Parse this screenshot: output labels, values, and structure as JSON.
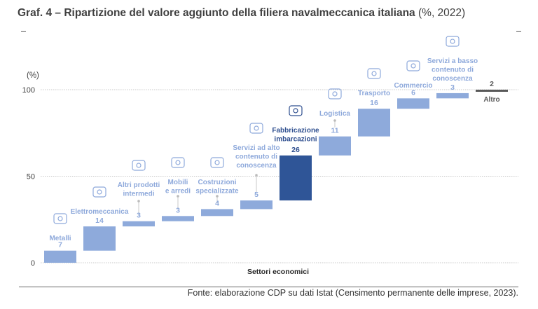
{
  "title": {
    "main": "Graf. 4 – Ripartizione del valore aggiunto della filiera navalmeccanica italiana",
    "sub": " (%, 2022)"
  },
  "source": "Fonte: elaborazione CDP su dati Istat (Censimento permanente delle imprese, 2023).",
  "chart_data": {
    "type": "waterfall",
    "title": "Graf. 4 – Ripartizione del valore aggiunto della filiera navalmeccanica italiana (%, 2022)",
    "ylabel": "(%)",
    "xlabel": "Settori economici",
    "ylim": [
      0,
      100
    ],
    "yticks": [
      "0",
      "50",
      "100"
    ],
    "grid": true,
    "categories": [
      {
        "label": [
          "Metalli"
        ],
        "value": 7,
        "icon": "worker-icon"
      },
      {
        "label": [
          "Elettromeccanica"
        ],
        "value": 14,
        "icon": "robot-arm-antenna-icon"
      },
      {
        "label": [
          "Altri prodotti",
          "intermedi"
        ],
        "value": 3,
        "icon": "gears-icon"
      },
      {
        "label": [
          "Mobili",
          "e arredi"
        ],
        "value": 3,
        "icon": "furniture-icon"
      },
      {
        "label": [
          "Costruzioni",
          "specializzate"
        ],
        "value": 4,
        "icon": "crane-icon"
      },
      {
        "label": [
          "Servizi ad alto",
          "contenuto di",
          "conoscenza"
        ],
        "value": 5,
        "icon": "lightbulb-gear-icon"
      },
      {
        "label": [
          "Fabbricazione",
          "imbarcazioni"
        ],
        "value": 26,
        "icon": "ship-sailboat-icon",
        "highlight": true
      },
      {
        "label": [
          "Logistica"
        ],
        "value": 11,
        "icon": "hand-truck-icon"
      },
      {
        "label": [
          "Trasporto"
        ],
        "value": 16,
        "icon": "cargo-ship-icon"
      },
      {
        "label": [
          "Commercio"
        ],
        "value": 6,
        "icon": "handshake-icon"
      },
      {
        "label": [
          "Servizi a basso",
          "contenuto di",
          "conoscenza"
        ],
        "value": 3,
        "icon": "headset-person-icon"
      },
      {
        "label": [
          "Altro"
        ],
        "value": 2,
        "icon": "",
        "total_style": true
      }
    ],
    "colors": {
      "bar": "#8eaadb",
      "highlight": "#2f5597",
      "altro": "#595959",
      "label": "#8ea9db",
      "highlight_label": "#2f4f8f"
    }
  }
}
